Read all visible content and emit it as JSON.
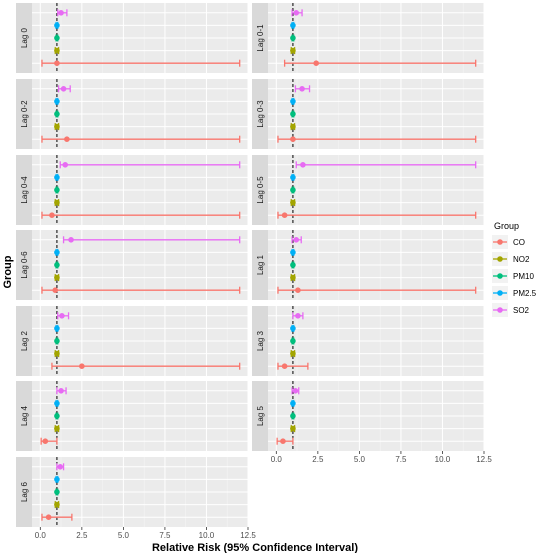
{
  "chart_data": {
    "type": "forest",
    "xlabel": "Relative Risk (95% Confidence Interval)",
    "ylabel": "Group",
    "xlim": [
      -0.5,
      12.5
    ],
    "xticks": [
      0.0,
      2.5,
      5.0,
      7.5,
      10.0,
      12.5
    ],
    "xtick_labels": [
      "0.0",
      "2.5",
      "5.0",
      "7.5",
      "10.0",
      "12.5"
    ],
    "reference_line": 1,
    "legend": {
      "title": "Group",
      "position": "right",
      "items": [
        {
          "label": "CO",
          "color": "#F8766D"
        },
        {
          "label": "NO2",
          "color": "#A3A500"
        },
        {
          "label": "PM10",
          "color": "#00BF7D"
        },
        {
          "label": "PM2.5",
          "color": "#00B0F6"
        },
        {
          "label": "SO2",
          "color": "#E76BF3"
        }
      ]
    },
    "series_order": [
      "SO2",
      "PM2.5",
      "PM10",
      "NO2",
      "CO"
    ],
    "panels": [
      {
        "label": "Lag 0",
        "estimates": {
          "SO2": [
            1.25,
            1.05,
            1.6
          ],
          "PM2.5": [
            1.0,
            0.95,
            1.05
          ],
          "PM10": [
            1.0,
            0.95,
            1.05
          ],
          "NO2": [
            1.0,
            0.9,
            1.1
          ],
          "CO": [
            1.0,
            0.1,
            12.0
          ]
        }
      },
      {
        "label": "Lag 0-1",
        "estimates": {
          "SO2": [
            1.2,
            0.95,
            1.55
          ],
          "PM2.5": [
            1.0,
            0.95,
            1.05
          ],
          "PM10": [
            1.0,
            0.95,
            1.05
          ],
          "NO2": [
            1.0,
            0.9,
            1.1
          ],
          "CO": [
            2.4,
            0.5,
            12.0
          ]
        }
      },
      {
        "label": "Lag 0-2",
        "estimates": {
          "SO2": [
            1.4,
            1.1,
            1.8
          ],
          "PM2.5": [
            1.0,
            0.95,
            1.05
          ],
          "PM10": [
            1.0,
            0.95,
            1.05
          ],
          "NO2": [
            1.0,
            0.9,
            1.1
          ],
          "CO": [
            1.6,
            0.1,
            12.0
          ]
        }
      },
      {
        "label": "Lag 0-3",
        "estimates": {
          "SO2": [
            1.55,
            1.15,
            2.0
          ],
          "PM2.5": [
            1.0,
            0.95,
            1.05
          ],
          "PM10": [
            1.0,
            0.95,
            1.05
          ],
          "NO2": [
            1.0,
            0.9,
            1.1
          ],
          "CO": [
            1.0,
            0.1,
            12.0
          ]
        }
      },
      {
        "label": "Lag 0-4",
        "estimates": {
          "SO2": [
            1.5,
            1.2,
            12.0
          ],
          "PM2.5": [
            1.0,
            0.95,
            1.05
          ],
          "PM10": [
            1.0,
            0.95,
            1.05
          ],
          "NO2": [
            1.0,
            0.9,
            1.1
          ],
          "CO": [
            0.7,
            0.1,
            12.0
          ]
        }
      },
      {
        "label": "Lag 0-5",
        "estimates": {
          "SO2": [
            1.6,
            1.2,
            12.0
          ],
          "PM2.5": [
            1.0,
            0.95,
            1.05
          ],
          "PM10": [
            1.0,
            0.95,
            1.05
          ],
          "NO2": [
            1.0,
            0.9,
            1.1
          ],
          "CO": [
            0.5,
            0.1,
            12.0
          ]
        }
      },
      {
        "label": "Lag 0-6",
        "estimates": {
          "SO2": [
            1.85,
            1.4,
            12.0
          ],
          "PM2.5": [
            1.0,
            0.95,
            1.05
          ],
          "PM10": [
            1.0,
            0.95,
            1.05
          ],
          "NO2": [
            1.0,
            0.9,
            1.1
          ],
          "CO": [
            0.9,
            0.1,
            12.0
          ]
        }
      },
      {
        "label": "Lag 1",
        "estimates": {
          "SO2": [
            1.2,
            0.95,
            1.5
          ],
          "PM2.5": [
            1.0,
            0.95,
            1.05
          ],
          "PM10": [
            1.0,
            0.95,
            1.05
          ],
          "NO2": [
            1.0,
            0.9,
            1.1
          ],
          "CO": [
            1.3,
            0.1,
            12.0
          ]
        }
      },
      {
        "label": "Lag 2",
        "estimates": {
          "SO2": [
            1.3,
            1.05,
            1.7
          ],
          "PM2.5": [
            1.0,
            0.95,
            1.05
          ],
          "PM10": [
            1.0,
            0.95,
            1.05
          ],
          "NO2": [
            1.0,
            0.9,
            1.1
          ],
          "CO": [
            2.5,
            0.7,
            12.0
          ]
        }
      },
      {
        "label": "Lag 3",
        "estimates": {
          "SO2": [
            1.3,
            1.0,
            1.6
          ],
          "PM2.5": [
            1.0,
            0.95,
            1.05
          ],
          "PM10": [
            1.0,
            0.95,
            1.05
          ],
          "NO2": [
            1.0,
            0.9,
            1.1
          ],
          "CO": [
            0.5,
            0.1,
            1.9
          ]
        }
      },
      {
        "label": "Lag 4",
        "estimates": {
          "SO2": [
            1.25,
            1.0,
            1.55
          ],
          "PM2.5": [
            1.0,
            0.95,
            1.05
          ],
          "PM10": [
            1.0,
            0.95,
            1.05
          ],
          "NO2": [
            1.0,
            0.9,
            1.1
          ],
          "CO": [
            0.3,
            0.05,
            1.0
          ]
        }
      },
      {
        "label": "Lag 5",
        "estimates": {
          "SO2": [
            1.15,
            0.95,
            1.35
          ],
          "PM2.5": [
            1.0,
            0.95,
            1.05
          ],
          "PM10": [
            1.0,
            0.95,
            1.05
          ],
          "NO2": [
            1.0,
            0.9,
            1.1
          ],
          "CO": [
            0.4,
            0.05,
            1.0
          ]
        }
      },
      {
        "label": "Lag 6",
        "estimates": {
          "SO2": [
            1.2,
            1.0,
            1.4
          ],
          "PM2.5": [
            1.0,
            0.95,
            1.05
          ],
          "PM10": [
            1.0,
            0.95,
            1.05
          ],
          "NO2": [
            1.0,
            0.9,
            1.1
          ],
          "CO": [
            0.5,
            0.1,
            1.9
          ]
        }
      }
    ]
  }
}
